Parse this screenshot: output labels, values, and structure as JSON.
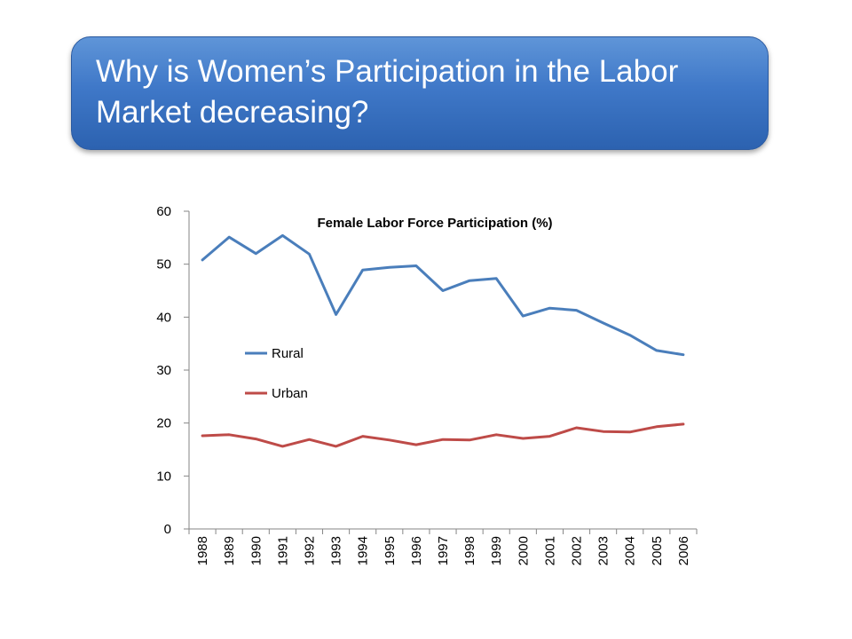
{
  "slide": {
    "title": "Why is Women’s Participation in the Labor Market decreasing?"
  },
  "chart_data": {
    "type": "line",
    "title": "Female Labor Force Participation (%)",
    "xlabel": "",
    "ylabel": "",
    "ylim": [
      0,
      60
    ],
    "yticks": [
      0,
      10,
      20,
      30,
      40,
      50,
      60
    ],
    "categories": [
      "1988",
      "1989",
      "1990",
      "1991",
      "1992",
      "1993",
      "1994",
      "1995",
      "1996",
      "1997",
      "1998",
      "1999",
      "2000",
      "2001",
      "2002",
      "2003",
      "2004",
      "2005",
      "2006"
    ],
    "series": [
      {
        "name": "Rural",
        "color": "#4a7ebb",
        "values": [
          50.8,
          55.1,
          52.0,
          55.4,
          51.9,
          40.5,
          48.9,
          49.4,
          49.7,
          45.0,
          46.9,
          47.3,
          40.2,
          41.7,
          41.3,
          38.9,
          36.6,
          33.7,
          32.9
        ]
      },
      {
        "name": "Urban",
        "color": "#be4b48",
        "values": [
          17.6,
          17.8,
          17.0,
          15.6,
          16.9,
          15.6,
          17.5,
          16.8,
          15.9,
          16.9,
          16.8,
          17.8,
          17.1,
          17.5,
          19.1,
          18.4,
          18.3,
          19.3,
          19.8
        ]
      }
    ],
    "legend_position": "left"
  }
}
